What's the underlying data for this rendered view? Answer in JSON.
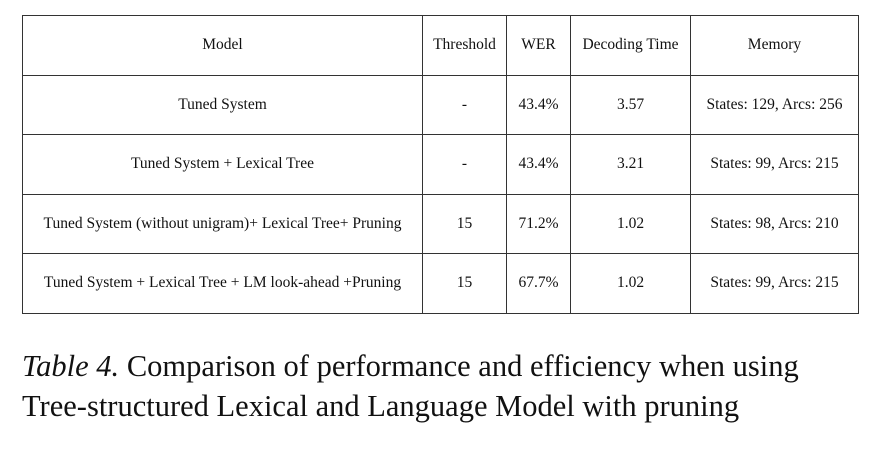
{
  "table": {
    "headers": [
      "Model",
      "Threshold",
      "WER",
      "Decoding Time",
      "Memory"
    ],
    "rows": [
      {
        "model": "Tuned System",
        "threshold": "-",
        "wer": "43.4%",
        "time": "3.57",
        "memory": "States: 129, Arcs: 256"
      },
      {
        "model": "Tuned System + Lexical Tree",
        "threshold": "-",
        "wer": "43.4%",
        "time": "3.21",
        "memory": "States: 99, Arcs: 215"
      },
      {
        "model": "Tuned System (without unigram)+ Lexical Tree+ Pruning",
        "threshold": "15",
        "wer": "71.2%",
        "time": "1.02",
        "memory": "States: 98, Arcs: 210"
      },
      {
        "model": "Tuned System + Lexical Tree + LM look-ahead +Pruning",
        "threshold": "15",
        "wer": "67.7%",
        "time": "1.02",
        "memory": "States: 99, Arcs: 215"
      }
    ]
  },
  "caption": {
    "label": "Table 4.",
    "line1": "Comparison of performance and efficiency when using",
    "line2": "Tree-structured Lexical and Language Model with pruning"
  }
}
